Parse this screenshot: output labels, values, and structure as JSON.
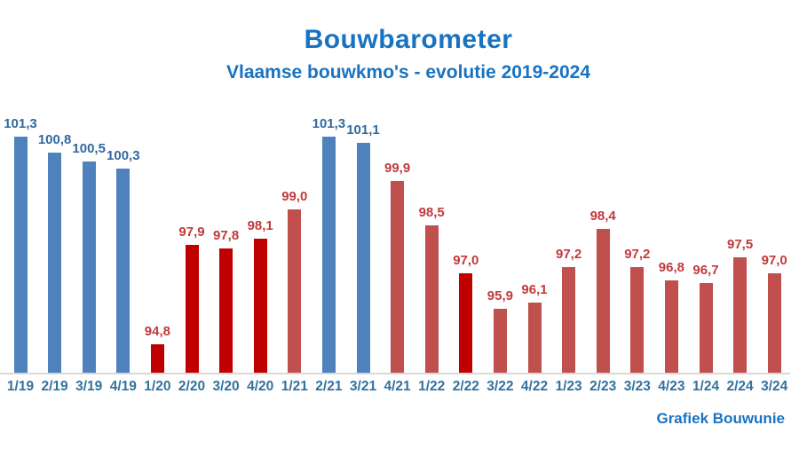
{
  "page": {
    "title": "Bouwbarometer",
    "subtitle": "Vlaamse bouwkmo's - evolutie 2019-2024",
    "credit": "Grafiek Bouwunie"
  },
  "colors": {
    "heading": "#1873C2",
    "bar_blue": "#4F81BD",
    "bar_red": "#C00000",
    "bar_brick": "#C0504D",
    "label_blue": "#31699E",
    "label_red": "#C13A3C",
    "axis_label": "#31719F",
    "axis_line": "#D8D8D8"
  },
  "chart_data": {
    "type": "bar",
    "title": "Bouwbarometer",
    "subtitle": "Vlaamse bouwkmo's - evolutie 2019-2024",
    "xlabel": "",
    "ylabel": "",
    "ylim": [
      93.9,
      102.1
    ],
    "grid": false,
    "legend": false,
    "value_format": "decimal-comma",
    "categories": [
      "1/19",
      "2/19",
      "3/19",
      "4/19",
      "1/20",
      "2/20",
      "3/20",
      "4/20",
      "1/21",
      "2/21",
      "3/21",
      "4/21",
      "1/22",
      "2/22",
      "3/22",
      "4/22",
      "1/23",
      "2/23",
      "3/23",
      "4/23",
      "1/24",
      "2/24",
      "3/24"
    ],
    "points": [
      {
        "category": "1/19",
        "value": 101.3,
        "label": "101,3",
        "series": "blue"
      },
      {
        "category": "2/19",
        "value": 100.8,
        "label": "100,8",
        "series": "blue"
      },
      {
        "category": "3/19",
        "value": 100.5,
        "label": "100,5",
        "series": "blue"
      },
      {
        "category": "4/19",
        "value": 100.3,
        "label": "100,3",
        "series": "blue"
      },
      {
        "category": "1/20",
        "value": 94.8,
        "label": "94,8",
        "series": "red"
      },
      {
        "category": "2/20",
        "value": 97.9,
        "label": "97,9",
        "series": "red"
      },
      {
        "category": "3/20",
        "value": 97.8,
        "label": "97,8",
        "series": "red"
      },
      {
        "category": "4/20",
        "value": 98.1,
        "label": "98,1",
        "series": "red"
      },
      {
        "category": "1/21",
        "value": 99.0,
        "label": "99,0",
        "series": "brick"
      },
      {
        "category": "2/21",
        "value": 101.3,
        "label": "101,3",
        "series": "blue"
      },
      {
        "category": "3/21",
        "value": 101.1,
        "label": "101,1",
        "series": "blue"
      },
      {
        "category": "4/21",
        "value": 99.9,
        "label": "99,9",
        "series": "brick"
      },
      {
        "category": "1/22",
        "value": 98.5,
        "label": "98,5",
        "series": "brick"
      },
      {
        "category": "2/22",
        "value": 97.0,
        "label": "97,0",
        "series": "red"
      },
      {
        "category": "3/22",
        "value": 95.9,
        "label": "95,9",
        "series": "brick"
      },
      {
        "category": "4/22",
        "value": 96.1,
        "label": "96,1",
        "series": "brick"
      },
      {
        "category": "1/23",
        "value": 97.2,
        "label": "97,2",
        "series": "brick"
      },
      {
        "category": "2/23",
        "value": 98.4,
        "label": "98,4",
        "series": "brick"
      },
      {
        "category": "3/23",
        "value": 97.2,
        "label": "97,2",
        "series": "brick"
      },
      {
        "category": "4/23",
        "value": 96.8,
        "label": "96,8",
        "series": "brick"
      },
      {
        "category": "1/24",
        "value": 96.7,
        "label": "96,7",
        "series": "brick"
      },
      {
        "category": "2/24",
        "value": 97.5,
        "label": "97,5",
        "series": "brick"
      },
      {
        "category": "3/24",
        "value": 97.0,
        "label": "97,0",
        "series": "brick"
      }
    ]
  }
}
